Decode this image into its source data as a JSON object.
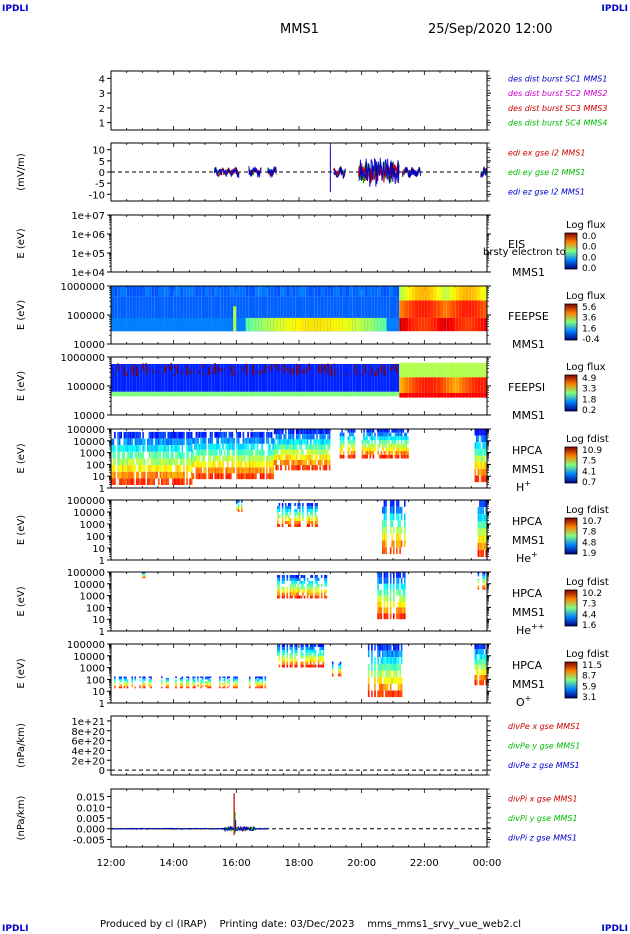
{
  "corner_label": "IPDLI",
  "header": {
    "spacecraft": "MMS1",
    "datetime": "25/Sep/2020 12:00"
  },
  "footer": "Produced by cl (IRAP)    Printing date: 03/Dec/2023    mms_mms1_srvy_vue_web2.cl",
  "colors": {
    "blue": "#0000cc",
    "magenta": "#cc00cc",
    "red": "#cc0000",
    "green": "#00bb00"
  },
  "chart_data": [
    {
      "id": "p1",
      "type": "line",
      "ylabel": "",
      "ylim": [
        0.5,
        4.5
      ],
      "yticks": [
        "1",
        "2",
        "3",
        "4"
      ],
      "legend": [
        {
          "text": "des dist burst SC1 MMS1",
          "color": "#0000cc"
        },
        {
          "text": "des dist burst SC2 MMS2",
          "color": "#cc00cc"
        },
        {
          "text": "des dist burst SC3 MMS3",
          "color": "#cc0000"
        },
        {
          "text": "des dist burst SC4 MMS4",
          "color": "#00bb00"
        }
      ]
    },
    {
      "id": "p2",
      "type": "line",
      "ylabel": "(mV/m)",
      "ylim": [
        -13,
        13
      ],
      "yticks": [
        "10",
        "5",
        "0",
        "-5",
        "-10"
      ],
      "legend": [
        {
          "text": "edi ex gse l2 MMS1",
          "color": "#cc0000"
        },
        {
          "text": "edi ey gse l2 MMS1",
          "color": "#00bb00"
        },
        {
          "text": "edi ez gse l2 MMS1",
          "color": "#0000cc"
        }
      ]
    },
    {
      "id": "p3",
      "type": "heatmap",
      "ylabel": "E (eV)",
      "scale": "log",
      "yticks": [
        "1e+07",
        "1e+06",
        "1e+05",
        "1e+04"
      ],
      "instrument": "EIS",
      "extra": "brsty electron tof",
      "sc": "MMS1",
      "colorbar": {
        "title": "Log flux",
        "ticks": [
          "0.0",
          "0.0",
          "0.0",
          "0.0"
        ]
      }
    },
    {
      "id": "p4",
      "type": "heatmap",
      "ylabel": "E (eV)",
      "scale": "log",
      "yticks": [
        "1000000",
        "100000",
        "10000"
      ],
      "instrument": "FEEPSE",
      "sc": "MMS1",
      "colorbar": {
        "title": "Log flux",
        "ticks": [
          "5.6",
          "3.6",
          "1.6",
          "-0.4"
        ]
      }
    },
    {
      "id": "p5",
      "type": "heatmap",
      "ylabel": "E (eV)",
      "scale": "log",
      "yticks": [
        "1000000",
        "100000",
        "10000"
      ],
      "instrument": "FEEPSI",
      "sc": "MMS1",
      "colorbar": {
        "title": "Log flux",
        "ticks": [
          "4.9",
          "3.3",
          "1.8",
          "0.2"
        ]
      }
    },
    {
      "id": "p6",
      "type": "heatmap",
      "ylabel": "E (eV)",
      "scale": "log",
      "yticks": [
        "100000",
        "10000",
        "1000",
        "100",
        "10",
        "1"
      ],
      "instrument": "HPCA",
      "sc": "MMS1",
      "species": "H",
      "charge": "+",
      "colorbar": {
        "title": "Log fdist",
        "ticks": [
          "10.9",
          "7.5",
          "4.1",
          "0.7"
        ]
      }
    },
    {
      "id": "p7",
      "type": "heatmap",
      "ylabel": "E (eV)",
      "scale": "log",
      "yticks": [
        "100000",
        "10000",
        "1000",
        "100",
        "10",
        "1"
      ],
      "instrument": "HPCA",
      "sc": "MMS1",
      "species": "He",
      "charge": "+",
      "colorbar": {
        "title": "Log fdist",
        "ticks": [
          "10.7",
          "7.8",
          "4.8",
          "1.9"
        ]
      }
    },
    {
      "id": "p8",
      "type": "heatmap",
      "ylabel": "E (eV)",
      "scale": "log",
      "yticks": [
        "100000",
        "10000",
        "1000",
        "100",
        "10",
        "1"
      ],
      "instrument": "HPCA",
      "sc": "MMS1",
      "species": "He",
      "charge": "++",
      "colorbar": {
        "title": "Log fdist",
        "ticks": [
          "10.2",
          "7.3",
          "4.4",
          "1.6"
        ]
      }
    },
    {
      "id": "p9",
      "type": "heatmap",
      "ylabel": "E (eV)",
      "scale": "log",
      "yticks": [
        "100000",
        "10000",
        "1000",
        "100",
        "10",
        "1"
      ],
      "instrument": "HPCA",
      "sc": "MMS1",
      "species": "O",
      "charge": "+",
      "colorbar": {
        "title": "Log fdist",
        "ticks": [
          "11.5",
          "8.7",
          "5.9",
          "3.1"
        ]
      }
    },
    {
      "id": "p10",
      "type": "line",
      "ylabel": "(nPa/km)",
      "ylim": [
        -1e+20,
        1.1e+21
      ],
      "yticks": [
        "1e+21",
        "8e+20",
        "6e+20",
        "4e+20",
        "2e+20",
        "0"
      ],
      "legend": [
        {
          "text": "divPe x gse MMS1",
          "color": "#cc0000"
        },
        {
          "text": "divPe y gse MMS1",
          "color": "#00bb00"
        },
        {
          "text": "divPe z gse MMS1",
          "color": "#0000cc"
        }
      ]
    },
    {
      "id": "p11",
      "type": "line",
      "ylabel": "(nPa/km)",
      "ylim": [
        -0.0085,
        0.0185
      ],
      "yticks": [
        "0.015",
        "0.010",
        "0.005",
        "0.000",
        "-0.005"
      ],
      "legend": [
        {
          "text": "divPi x gse MMS1",
          "color": "#cc0000"
        },
        {
          "text": "divPi y gse MMS1",
          "color": "#00bb00"
        },
        {
          "text": "divPi z gse MMS1",
          "color": "#0000cc"
        }
      ]
    }
  ],
  "xaxis": {
    "ticks": [
      "12:00",
      "14:00",
      "16:00",
      "18:00",
      "20:00",
      "22:00",
      "00:00"
    ]
  }
}
